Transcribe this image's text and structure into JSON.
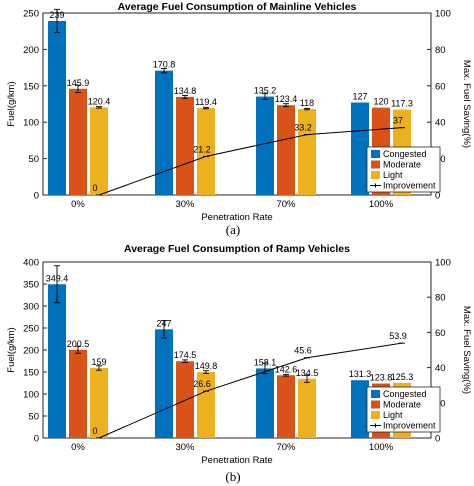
{
  "chart_data": [
    {
      "type": "bar",
      "title": "Average Fuel Consumption of Mainline Vehicles",
      "xlabel": "Penetration Rate",
      "ylabel": "Fuel(g/km)",
      "ylabel_right": "Max. Fuel Saving(%)",
      "panel_label": "(a)",
      "categories": [
        "0%",
        "30%",
        "70%",
        "100%"
      ],
      "ylim": [
        0,
        250
      ],
      "yticks": [
        0,
        50,
        100,
        150,
        200,
        250
      ],
      "ylim_right": [
        0,
        100
      ],
      "yticks_right": [
        0,
        20,
        40,
        60,
        80,
        100
      ],
      "series": [
        {
          "name": "Congested",
          "color": "#0072bd",
          "values": [
            239,
            170.8,
            135.2,
            127
          ],
          "labels": [
            "239",
            "170.8",
            "135.2",
            "127"
          ],
          "errors": [
            16,
            3,
            4,
            0
          ]
        },
        {
          "name": "Moderate",
          "color": "#d95319",
          "values": [
            145.9,
            134.8,
            123.4,
            120
          ],
          "labels": [
            "145.9",
            "134.8",
            "123.4",
            "120"
          ],
          "errors": [
            5,
            2,
            2,
            0
          ]
        },
        {
          "name": "Light",
          "color": "#edb120",
          "values": [
            120.4,
            119.4,
            118,
            117.3
          ],
          "labels": [
            "120.4",
            "119.4",
            "118",
            "117.3"
          ],
          "errors": [
            1,
            1,
            1,
            0
          ]
        }
      ],
      "line": {
        "name": "Improvement",
        "color": "#000000",
        "values": [
          0,
          21.2,
          33.2,
          37
        ],
        "labels": [
          "0",
          "21.2",
          "33.2",
          "37"
        ]
      },
      "legend": "bottom-right",
      "grid": false
    },
    {
      "type": "bar",
      "title": "Average Fuel Consumption of Ramp Vehicles",
      "xlabel": "Penetration Rate",
      "ylabel": "Fuel(g/km)",
      "ylabel_right": "Max. Fuel Saving(%)",
      "panel_label": "(b)",
      "categories": [
        "0%",
        "30%",
        "70%",
        "100%"
      ],
      "ylim": [
        0,
        400
      ],
      "yticks": [
        0,
        50,
        100,
        150,
        200,
        250,
        300,
        350,
        400
      ],
      "ylim_right": [
        0,
        100
      ],
      "yticks_right": [
        0,
        20,
        40,
        60,
        80,
        100
      ],
      "series": [
        {
          "name": "Congested",
          "color": "#0072bd",
          "values": [
            349.4,
            247,
            158.1,
            131.3
          ],
          "labels": [
            "349.4",
            "247",
            "158.1",
            "131.3"
          ],
          "errors": [
            42,
            20,
            12,
            0
          ]
        },
        {
          "name": "Moderate",
          "color": "#d95319",
          "values": [
            200.5,
            174.5,
            142.6,
            123.8
          ],
          "labels": [
            "200.5",
            "174.5",
            "142.6",
            "123.8"
          ],
          "errors": [
            8,
            3,
            2,
            0
          ]
        },
        {
          "name": "Light",
          "color": "#edb120",
          "values": [
            159,
            149.8,
            134.5,
            125.3
          ],
          "labels": [
            "159",
            "149.8",
            "134.5",
            "125.3"
          ],
          "errors": [
            5,
            3,
            8,
            0
          ]
        }
      ],
      "line": {
        "name": "Improvement",
        "color": "#000000",
        "values": [
          0,
          26.6,
          45.6,
          53.9
        ],
        "labels": [
          "0",
          "26.6",
          "45.6",
          "53.9"
        ]
      },
      "legend": "bottom-right",
      "grid": false
    }
  ]
}
